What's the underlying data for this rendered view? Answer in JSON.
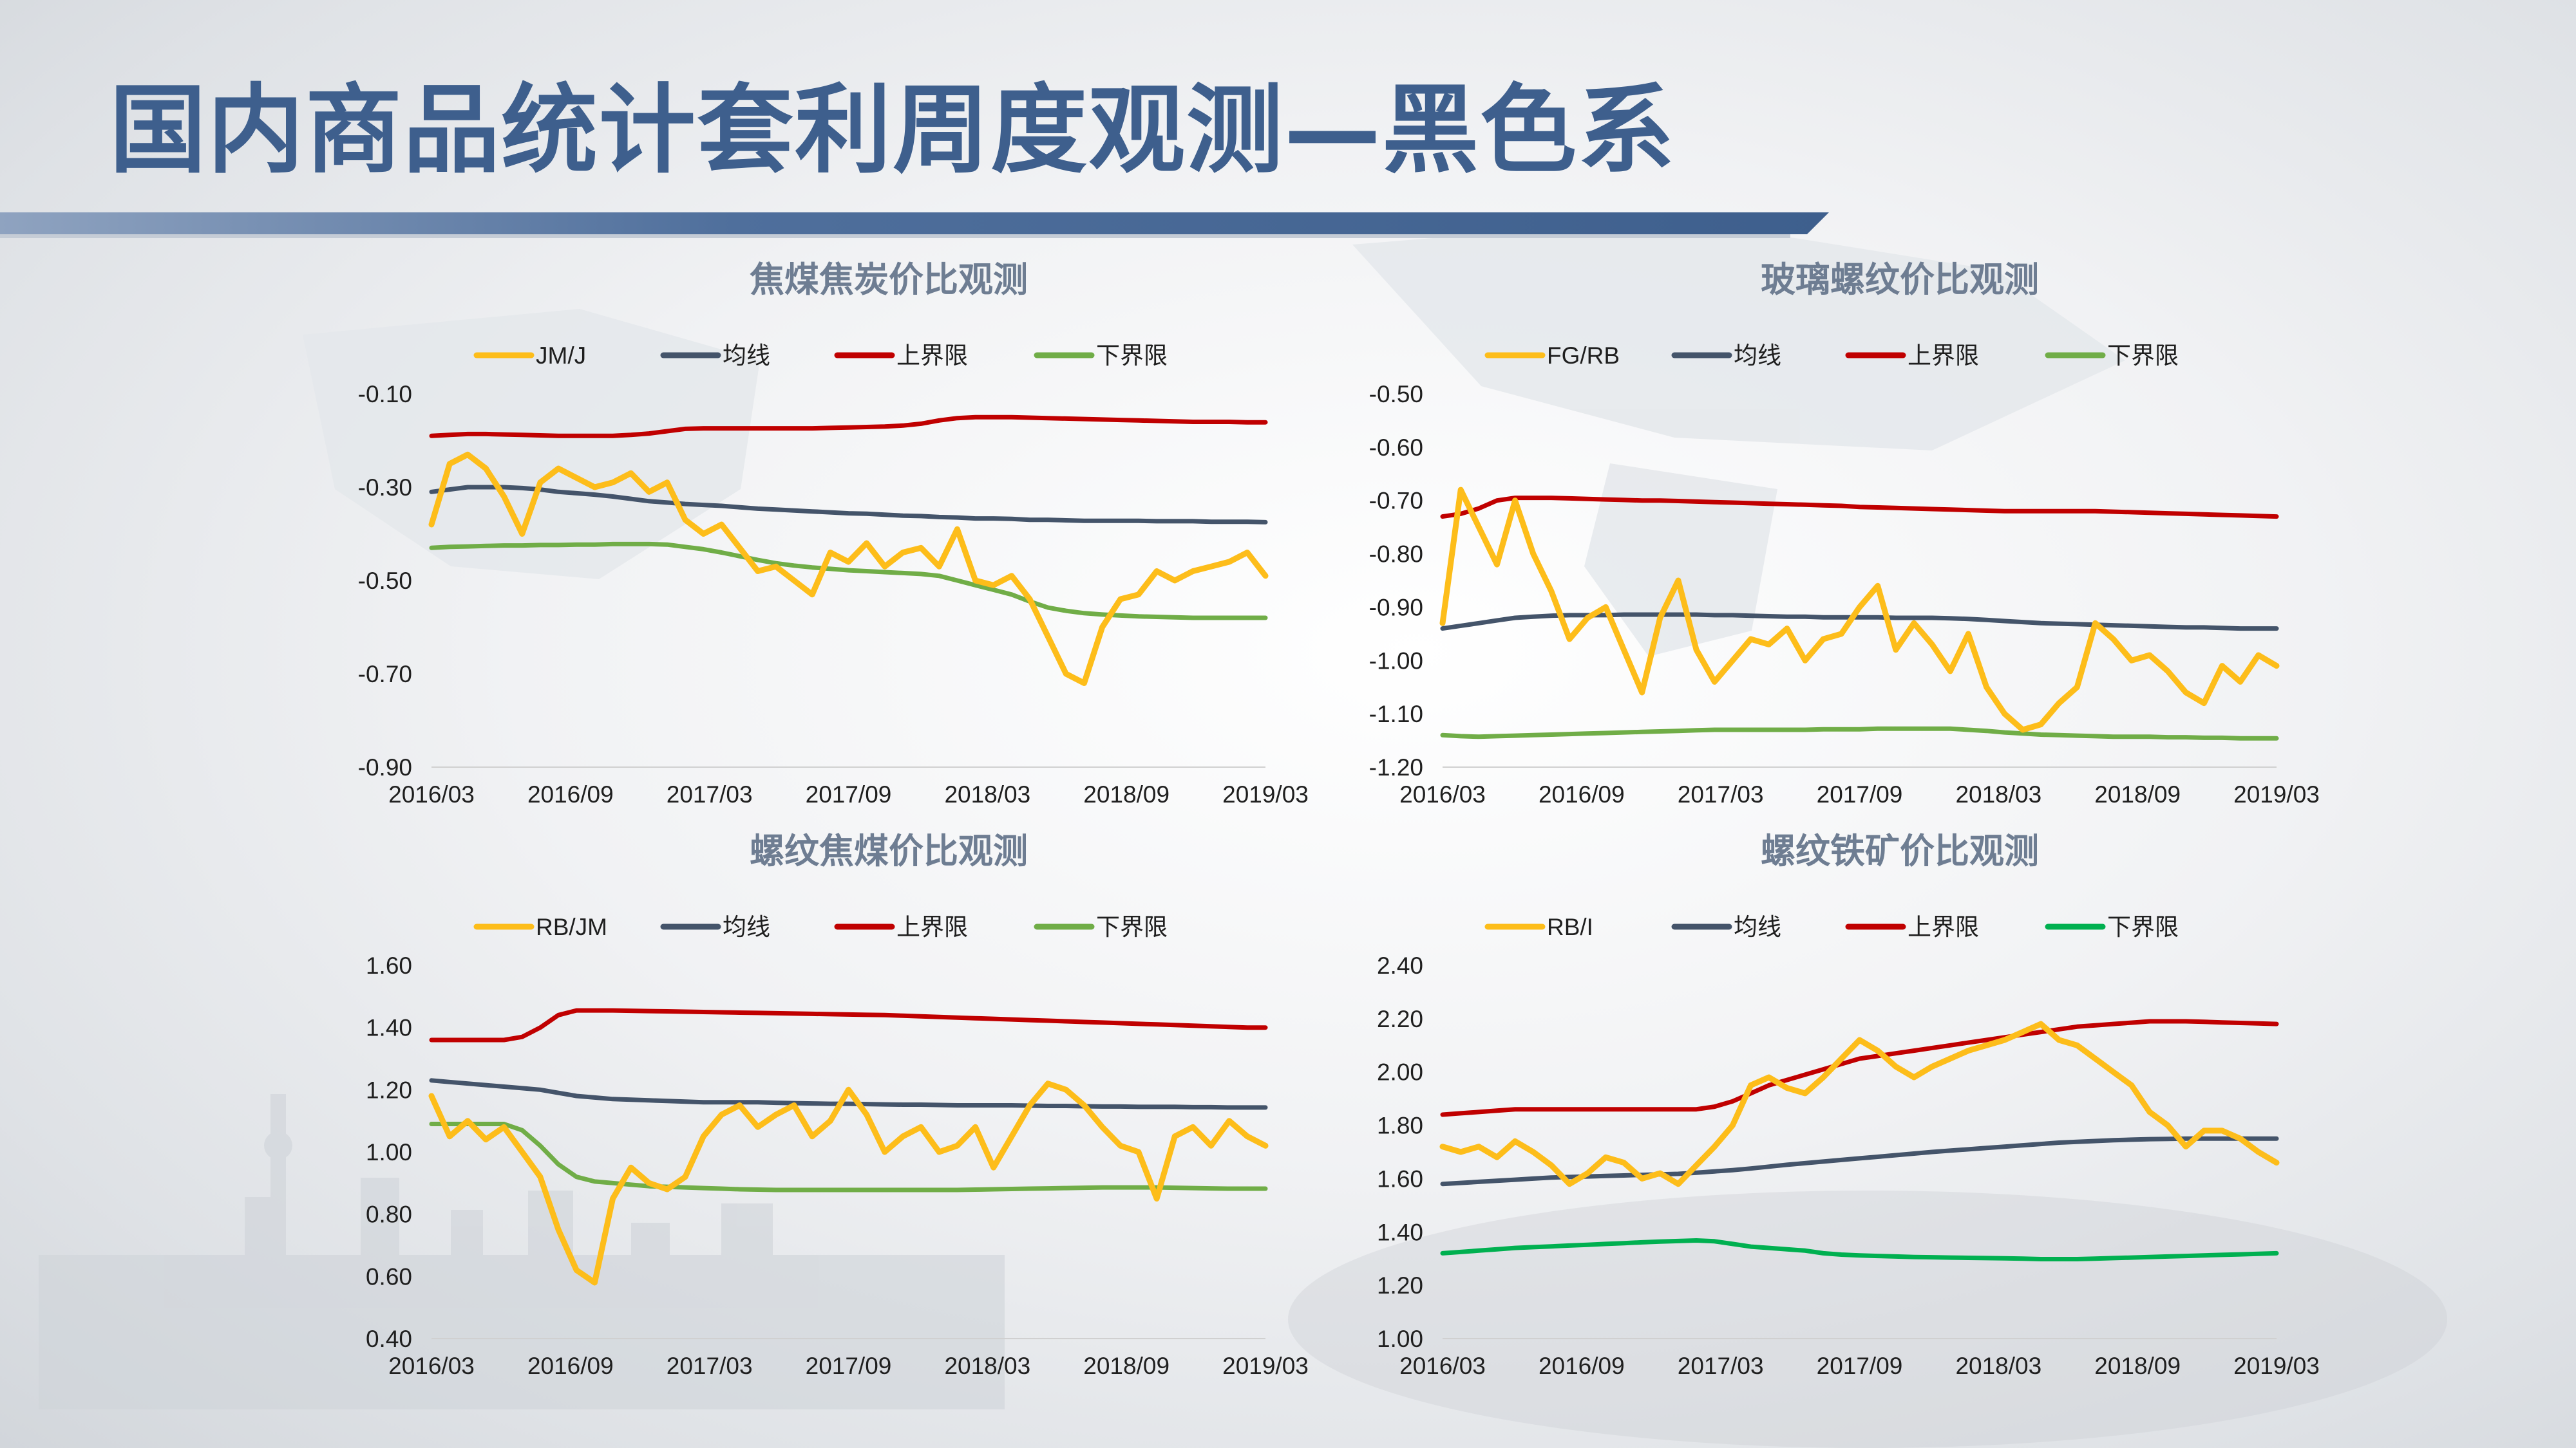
{
  "page": {
    "title": "国内商品统计套利周度观测—黑色系"
  },
  "colors": {
    "title": "#3e5f8d",
    "ratio_line": "#fdbd1a",
    "mean_line": "#44546a",
    "upper_line": "#c00000",
    "lower_line": "#70ad47",
    "lower_line_alt": "#00b050"
  },
  "chart_data": [
    {
      "id": "jm_j",
      "type": "line",
      "title": "焦煤焦炭价比观测",
      "xlabel": "",
      "ylabel": "",
      "x_ticks": [
        "2016/03",
        "2016/09",
        "2017/03",
        "2017/09",
        "2018/03",
        "2018/09",
        "2019/03"
      ],
      "y_ticks": [
        "-0.10",
        "-0.30",
        "-0.50",
        "-0.70",
        "-0.90"
      ],
      "ylim": [
        -0.9,
        -0.1
      ],
      "legend_position": "top",
      "grid": false,
      "series": [
        {
          "name": "JM/J",
          "role": "ratio",
          "color": "#fdbd1a",
          "values": [
            -0.38,
            -0.25,
            -0.23,
            -0.26,
            -0.32,
            -0.4,
            -0.29,
            -0.26,
            -0.28,
            -0.3,
            -0.29,
            -0.27,
            -0.31,
            -0.29,
            -0.37,
            -0.4,
            -0.38,
            -0.43,
            -0.48,
            -0.47,
            -0.5,
            -0.53,
            -0.44,
            -0.46,
            -0.42,
            -0.47,
            -0.44,
            -0.43,
            -0.47,
            -0.39,
            -0.5,
            -0.51,
            -0.49,
            -0.54,
            -0.62,
            -0.7,
            -0.72,
            -0.6,
            -0.54,
            -0.53,
            -0.48,
            -0.5,
            -0.48,
            -0.47,
            -0.46,
            -0.44,
            -0.49
          ]
        },
        {
          "name": "均线",
          "role": "mean",
          "color": "#44546a",
          "values": [
            -0.31,
            -0.305,
            -0.3,
            -0.3,
            -0.3,
            -0.302,
            -0.305,
            -0.31,
            -0.313,
            -0.316,
            -0.32,
            -0.325,
            -0.33,
            -0.333,
            -0.336,
            -0.338,
            -0.34,
            -0.343,
            -0.346,
            -0.348,
            -0.35,
            -0.352,
            -0.354,
            -0.356,
            -0.357,
            -0.359,
            -0.361,
            -0.362,
            -0.364,
            -0.365,
            -0.367,
            -0.367,
            -0.368,
            -0.37,
            -0.37,
            -0.371,
            -0.372,
            -0.372,
            -0.372,
            -0.372,
            -0.373,
            -0.373,
            -0.373,
            -0.374,
            -0.374,
            -0.374,
            -0.375
          ]
        },
        {
          "name": "上界限",
          "role": "upper",
          "color": "#c00000",
          "values": [
            -0.19,
            -0.188,
            -0.186,
            -0.186,
            -0.187,
            -0.188,
            -0.189,
            -0.19,
            -0.19,
            -0.19,
            -0.19,
            -0.188,
            -0.185,
            -0.18,
            -0.175,
            -0.174,
            -0.174,
            -0.174,
            -0.174,
            -0.174,
            -0.174,
            -0.174,
            -0.173,
            -0.172,
            -0.171,
            -0.17,
            -0.168,
            -0.164,
            -0.157,
            -0.152,
            -0.15,
            -0.15,
            -0.15,
            -0.151,
            -0.152,
            -0.153,
            -0.154,
            -0.155,
            -0.156,
            -0.157,
            -0.158,
            -0.159,
            -0.16,
            -0.16,
            -0.16,
            -0.161,
            -0.161
          ]
        },
        {
          "name": "下界限",
          "role": "lower",
          "color": "#70ad47",
          "values": [
            -0.43,
            -0.428,
            -0.427,
            -0.426,
            -0.425,
            -0.425,
            -0.424,
            -0.424,
            -0.423,
            -0.423,
            -0.422,
            -0.422,
            -0.422,
            -0.423,
            -0.428,
            -0.433,
            -0.44,
            -0.448,
            -0.456,
            -0.463,
            -0.468,
            -0.472,
            -0.475,
            -0.478,
            -0.48,
            -0.482,
            -0.484,
            -0.486,
            -0.49,
            -0.5,
            -0.51,
            -0.52,
            -0.53,
            -0.545,
            -0.558,
            -0.565,
            -0.57,
            -0.573,
            -0.575,
            -0.577,
            -0.578,
            -0.579,
            -0.58,
            -0.58,
            -0.58,
            -0.58,
            -0.58
          ]
        }
      ]
    },
    {
      "id": "fg_rb",
      "type": "line",
      "title": "玻璃螺纹价比观测",
      "xlabel": "",
      "ylabel": "",
      "x_ticks": [
        "2016/03",
        "2016/09",
        "2017/03",
        "2017/09",
        "2018/03",
        "2018/09",
        "2019/03"
      ],
      "y_ticks": [
        "-0.50",
        "-0.60",
        "-0.70",
        "-0.80",
        "-0.90",
        "-1.00",
        "-1.10",
        "-1.20"
      ],
      "ylim": [
        -1.2,
        -0.5
      ],
      "legend_position": "top",
      "grid": false,
      "series": [
        {
          "name": "FG/RB",
          "role": "ratio",
          "color": "#fdbd1a",
          "values": [
            -0.93,
            -0.68,
            -0.75,
            -0.82,
            -0.7,
            -0.8,
            -0.87,
            -0.96,
            -0.92,
            -0.9,
            -0.98,
            -1.06,
            -0.92,
            -0.85,
            -0.98,
            -1.04,
            -1.0,
            -0.96,
            -0.97,
            -0.94,
            -1.0,
            -0.96,
            -0.95,
            -0.9,
            -0.86,
            -0.98,
            -0.93,
            -0.97,
            -1.02,
            -0.95,
            -1.05,
            -1.1,
            -1.13,
            -1.12,
            -1.08,
            -1.05,
            -0.93,
            -0.96,
            -1.0,
            -0.99,
            -1.02,
            -1.06,
            -1.08,
            -1.01,
            -1.04,
            -0.99,
            -1.01
          ]
        },
        {
          "name": "均线",
          "role": "mean",
          "color": "#44546a",
          "values": [
            -0.94,
            -0.935,
            -0.93,
            -0.925,
            -0.92,
            -0.918,
            -0.916,
            -0.915,
            -0.915,
            -0.915,
            -0.914,
            -0.914,
            -0.914,
            -0.914,
            -0.914,
            -0.915,
            -0.915,
            -0.916,
            -0.917,
            -0.918,
            -0.918,
            -0.919,
            -0.919,
            -0.919,
            -0.919,
            -0.92,
            -0.92,
            -0.92,
            -0.921,
            -0.922,
            -0.924,
            -0.926,
            -0.928,
            -0.93,
            -0.931,
            -0.932,
            -0.933,
            -0.934,
            -0.935,
            -0.936,
            -0.937,
            -0.938,
            -0.938,
            -0.939,
            -0.94,
            -0.94,
            -0.94
          ]
        },
        {
          "name": "上界限",
          "role": "upper",
          "color": "#c00000",
          "values": [
            -0.73,
            -0.725,
            -0.715,
            -0.7,
            -0.695,
            -0.695,
            -0.695,
            -0.696,
            -0.697,
            -0.698,
            -0.699,
            -0.7,
            -0.7,
            -0.701,
            -0.702,
            -0.703,
            -0.704,
            -0.705,
            -0.706,
            -0.707,
            -0.708,
            -0.709,
            -0.71,
            -0.712,
            -0.713,
            -0.714,
            -0.715,
            -0.716,
            -0.717,
            -0.718,
            -0.719,
            -0.72,
            -0.72,
            -0.72,
            -0.72,
            -0.72,
            -0.72,
            -0.721,
            -0.722,
            -0.723,
            -0.724,
            -0.725,
            -0.726,
            -0.727,
            -0.728,
            -0.729,
            -0.73
          ]
        },
        {
          "name": "下界限",
          "role": "lower",
          "color": "#70ad47",
          "values": [
            -1.14,
            -1.142,
            -1.143,
            -1.142,
            -1.141,
            -1.14,
            -1.139,
            -1.138,
            -1.137,
            -1.136,
            -1.135,
            -1.134,
            -1.133,
            -1.132,
            -1.131,
            -1.13,
            -1.13,
            -1.13,
            -1.13,
            -1.13,
            -1.13,
            -1.129,
            -1.129,
            -1.129,
            -1.128,
            -1.128,
            -1.128,
            -1.128,
            -1.128,
            -1.13,
            -1.132,
            -1.135,
            -1.137,
            -1.139,
            -1.14,
            -1.141,
            -1.142,
            -1.143,
            -1.143,
            -1.143,
            -1.144,
            -1.144,
            -1.145,
            -1.145,
            -1.146,
            -1.146,
            -1.146
          ]
        }
      ]
    },
    {
      "id": "rb_jm",
      "type": "line",
      "title": "螺纹焦煤价比观测",
      "xlabel": "",
      "ylabel": "",
      "x_ticks": [
        "2016/03",
        "2016/09",
        "2017/03",
        "2017/09",
        "2018/03",
        "2018/09",
        "2019/03"
      ],
      "y_ticks": [
        "1.60",
        "1.40",
        "1.20",
        "1.00",
        "0.80",
        "0.60",
        "0.40"
      ],
      "ylim": [
        0.4,
        1.6
      ],
      "legend_position": "top",
      "grid": false,
      "series": [
        {
          "name": "RB/JM",
          "role": "ratio",
          "color": "#fdbd1a",
          "values": [
            1.18,
            1.05,
            1.1,
            1.04,
            1.08,
            1.0,
            0.92,
            0.75,
            0.62,
            0.58,
            0.85,
            0.95,
            0.9,
            0.88,
            0.92,
            1.05,
            1.12,
            1.15,
            1.08,
            1.12,
            1.15,
            1.05,
            1.1,
            1.2,
            1.12,
            1.0,
            1.05,
            1.08,
            1.0,
            1.02,
            1.08,
            0.95,
            1.05,
            1.15,
            1.22,
            1.2,
            1.15,
            1.08,
            1.02,
            1.0,
            0.85,
            1.05,
            1.08,
            1.02,
            1.1,
            1.05,
            1.02
          ]
        },
        {
          "name": "均线",
          "role": "mean",
          "color": "#44546a",
          "values": [
            1.23,
            1.225,
            1.22,
            1.215,
            1.21,
            1.205,
            1.2,
            1.19,
            1.18,
            1.175,
            1.17,
            1.168,
            1.166,
            1.164,
            1.162,
            1.16,
            1.16,
            1.16,
            1.16,
            1.158,
            1.157,
            1.156,
            1.155,
            1.155,
            1.154,
            1.153,
            1.152,
            1.152,
            1.151,
            1.15,
            1.15,
            1.15,
            1.15,
            1.149,
            1.148,
            1.148,
            1.147,
            1.146,
            1.146,
            1.145,
            1.145,
            1.145,
            1.144,
            1.144,
            1.143,
            1.143,
            1.143
          ]
        },
        {
          "name": "上界限",
          "role": "upper",
          "color": "#c00000",
          "values": [
            1.36,
            1.36,
            1.36,
            1.36,
            1.36,
            1.37,
            1.4,
            1.44,
            1.455,
            1.455,
            1.455,
            1.454,
            1.453,
            1.452,
            1.451,
            1.45,
            1.449,
            1.448,
            1.447,
            1.446,
            1.445,
            1.444,
            1.443,
            1.442,
            1.441,
            1.44,
            1.438,
            1.436,
            1.434,
            1.432,
            1.43,
            1.428,
            1.426,
            1.424,
            1.422,
            1.42,
            1.418,
            1.416,
            1.414,
            1.412,
            1.41,
            1.408,
            1.406,
            1.404,
            1.402,
            1.4,
            1.4
          ]
        },
        {
          "name": "下界限",
          "role": "lower",
          "color": "#70ad47",
          "values": [
            1.09,
            1.09,
            1.09,
            1.09,
            1.09,
            1.07,
            1.02,
            0.96,
            0.92,
            0.905,
            0.9,
            0.895,
            0.89,
            0.888,
            0.886,
            0.884,
            0.882,
            0.88,
            0.879,
            0.878,
            0.878,
            0.878,
            0.878,
            0.878,
            0.878,
            0.878,
            0.878,
            0.878,
            0.878,
            0.878,
            0.879,
            0.88,
            0.881,
            0.882,
            0.883,
            0.884,
            0.885,
            0.886,
            0.886,
            0.886,
            0.886,
            0.885,
            0.884,
            0.883,
            0.882,
            0.882,
            0.882
          ]
        }
      ]
    },
    {
      "id": "rb_i",
      "type": "line",
      "title": "螺纹铁矿价比观测",
      "xlabel": "",
      "ylabel": "",
      "x_ticks": [
        "2016/03",
        "2016/09",
        "2017/03",
        "2017/09",
        "2018/03",
        "2018/09",
        "2019/03"
      ],
      "y_ticks": [
        "2.40",
        "2.20",
        "2.00",
        "1.80",
        "1.60",
        "1.40",
        "1.20",
        "1.00"
      ],
      "ylim": [
        1.0,
        2.4
      ],
      "legend_position": "top",
      "grid": false,
      "series": [
        {
          "name": "RB/I",
          "role": "ratio",
          "color": "#fdbd1a",
          "values": [
            1.72,
            1.7,
            1.72,
            1.68,
            1.74,
            1.7,
            1.65,
            1.58,
            1.62,
            1.68,
            1.66,
            1.6,
            1.62,
            1.58,
            1.65,
            1.72,
            1.8,
            1.95,
            1.98,
            1.94,
            1.92,
            1.98,
            2.05,
            2.12,
            2.08,
            2.02,
            1.98,
            2.02,
            2.05,
            2.08,
            2.1,
            2.12,
            2.15,
            2.18,
            2.12,
            2.1,
            2.05,
            2.0,
            1.95,
            1.85,
            1.8,
            1.72,
            1.78,
            1.78,
            1.75,
            1.7,
            1.66
          ]
        },
        {
          "name": "均线",
          "role": "mean",
          "color": "#44546a",
          "values": [
            1.58,
            1.584,
            1.588,
            1.592,
            1.596,
            1.6,
            1.604,
            1.606,
            1.608,
            1.61,
            1.612,
            1.614,
            1.616,
            1.618,
            1.622,
            1.627,
            1.632,
            1.638,
            1.645,
            1.652,
            1.658,
            1.664,
            1.67,
            1.676,
            1.682,
            1.688,
            1.694,
            1.7,
            1.705,
            1.71,
            1.715,
            1.72,
            1.725,
            1.73,
            1.735,
            1.738,
            1.741,
            1.744,
            1.746,
            1.748,
            1.749,
            1.75,
            1.75,
            1.75,
            1.75,
            1.75,
            1.75
          ]
        },
        {
          "name": "上界限",
          "role": "upper",
          "color": "#c00000",
          "values": [
            1.84,
            1.845,
            1.85,
            1.855,
            1.86,
            1.86,
            1.86,
            1.86,
            1.86,
            1.86,
            1.86,
            1.86,
            1.86,
            1.86,
            1.86,
            1.87,
            1.89,
            1.92,
            1.95,
            1.97,
            1.99,
            2.01,
            2.03,
            2.05,
            2.06,
            2.07,
            2.08,
            2.09,
            2.1,
            2.11,
            2.12,
            2.13,
            2.14,
            2.15,
            2.16,
            2.17,
            2.175,
            2.18,
            2.185,
            2.19,
            2.19,
            2.19,
            2.188,
            2.186,
            2.184,
            2.182,
            2.18
          ]
        },
        {
          "name": "下界限",
          "role": "lower",
          "color": "#00b050",
          "values": [
            1.32,
            1.325,
            1.33,
            1.335,
            1.34,
            1.343,
            1.346,
            1.349,
            1.352,
            1.355,
            1.358,
            1.361,
            1.364,
            1.366,
            1.368,
            1.365,
            1.355,
            1.345,
            1.34,
            1.335,
            1.33,
            1.32,
            1.315,
            1.312,
            1.31,
            1.308,
            1.306,
            1.305,
            1.304,
            1.303,
            1.302,
            1.301,
            1.3,
            1.298,
            1.298,
            1.298,
            1.3,
            1.302,
            1.304,
            1.306,
            1.308,
            1.31,
            1.312,
            1.314,
            1.316,
            1.318,
            1.32
          ]
        }
      ]
    }
  ]
}
